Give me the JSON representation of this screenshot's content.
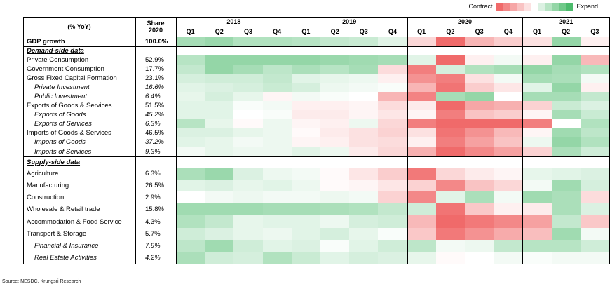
{
  "legend": {
    "low_label": "Contract",
    "high_label": "Expand",
    "swatch_values": [
      -3,
      -2.4,
      -1.8,
      -1.2,
      -0.6,
      0,
      0.6,
      1.2,
      1.8,
      2.4,
      3
    ]
  },
  "header": {
    "metric_label": "(% YoY)",
    "share_label_line1": "Share",
    "share_label_line2": "2020"
  },
  "source": "Source: NESDC, Krungsri Research",
  "colors": {
    "contract": "#f06a6a",
    "neutral": "#ffffff",
    "expand": "#4cbb6c"
  },
  "chart_data": {
    "type": "heatmap",
    "years": [
      {
        "year": "2018",
        "quarters": [
          "Q1",
          "Q2",
          "Q3",
          "Q4"
        ]
      },
      {
        "year": "2019",
        "quarters": [
          "Q1",
          "Q2",
          "Q3",
          "Q4"
        ]
      },
      {
        "year": "2020",
        "quarters": [
          "Q1",
          "Q2",
          "Q3",
          "Q4"
        ]
      },
      {
        "year": "2021",
        "quarters": [
          "Q1",
          "Q2",
          "Q3"
        ]
      }
    ],
    "rows": [
      {
        "label": "GDP growth",
        "share": "100.0%",
        "style": "bold",
        "values": [
          1.5,
          1.7,
          1.3,
          1.3,
          1.2,
          1.0,
          0.9,
          0.5,
          -0.8,
          -3.0,
          -1.5,
          -1.0,
          -0.6,
          1.8,
          -0.3
        ]
      },
      {
        "label": "Demand-side data",
        "share": "",
        "style": "header",
        "values": []
      },
      {
        "label": "Private Consumption",
        "share": "52.9%",
        "style": "normal",
        "values": [
          1.2,
          1.8,
          1.8,
          1.8,
          1.8,
          1.7,
          1.6,
          1.5,
          0.5,
          -3.0,
          -0.3,
          0.2,
          -0.3,
          1.8,
          -1.4
        ]
      },
      {
        "label": "Government Consumption",
        "share": "17.7%",
        "style": "normal",
        "values": [
          1.0,
          1.8,
          1.5,
          1.1,
          1.4,
          1.2,
          1.5,
          -0.7,
          -2.6,
          0.7,
          1.3,
          1.5,
          1.8,
          1.5,
          1.3
        ]
      },
      {
        "label": "Gross Fixed Capital Formation",
        "share": "23.1%",
        "style": "normal",
        "values": [
          0.7,
          0.8,
          0.8,
          1.0,
          0.5,
          0.4,
          0.3,
          -0.3,
          -2.2,
          -2.6,
          -0.6,
          0.2,
          1.5,
          1.4,
          0.2
        ]
      },
      {
        "label": "Private Investment",
        "share": "16.6%",
        "style": "sub",
        "values": [
          0.5,
          0.6,
          0.7,
          0.9,
          0.7,
          0.3,
          0.2,
          0.1,
          -1.5,
          -2.8,
          -1.0,
          -0.5,
          0.5,
          1.8,
          -0.3
        ]
      },
      {
        "label": "Public Investment",
        "share": "6.4%",
        "style": "sub",
        "values": [
          0.4,
          0.7,
          0.4,
          -0.2,
          0.2,
          0.1,
          0.0,
          -1.5,
          -2.5,
          1.5,
          1.8,
          0.0,
          1.5,
          1.5,
          1.0
        ]
      },
      {
        "label": "Exports of Goods & Services",
        "share": "51.5%",
        "style": "normal",
        "values": [
          0.5,
          0.5,
          0.1,
          0.2,
          -0.3,
          -0.3,
          -0.2,
          -0.7,
          -0.4,
          -3.0,
          -1.8,
          -1.6,
          -0.9,
          0.9,
          0.6
        ]
      },
      {
        "label": "Exports of Goods",
        "share": "45.2%",
        "style": "sub",
        "values": [
          0.5,
          0.5,
          0.0,
          0.1,
          -0.4,
          -0.4,
          -0.2,
          -0.5,
          -0.2,
          -2.6,
          -1.2,
          -1.0,
          -0.2,
          1.5,
          0.9
        ]
      },
      {
        "label": "Exports of Services",
        "share": "6.3%",
        "style": "sub",
        "values": [
          1.2,
          0.4,
          -0.1,
          0.3,
          -0.2,
          -0.3,
          0.3,
          -0.8,
          -2.6,
          -3.0,
          -3.0,
          -3.0,
          -2.6,
          0.0,
          1.3
        ]
      },
      {
        "label": "Imports of Goods & Services",
        "share": "46.5%",
        "style": "normal",
        "values": [
          0.6,
          0.6,
          0.4,
          0.3,
          -0.1,
          -0.4,
          -0.6,
          -0.9,
          -0.6,
          -2.8,
          -2.2,
          -1.4,
          -0.2,
          1.6,
          1.1
        ]
      },
      {
        "label": "Imports of Goods",
        "share": "37.2%",
        "style": "sub",
        "values": [
          0.5,
          0.4,
          0.2,
          0.3,
          -0.2,
          -0.3,
          -0.6,
          -0.7,
          -0.3,
          -2.6,
          -1.9,
          -1.2,
          0.3,
          1.8,
          1.3
        ]
      },
      {
        "label": "Imports of Services",
        "share": "9.3%",
        "style": "sub",
        "values": [
          0.2,
          0.4,
          0.3,
          0.3,
          0.5,
          0.3,
          -0.4,
          -0.8,
          -1.6,
          -3.0,
          -2.4,
          -1.9,
          -0.9,
          1.4,
          0.8
        ]
      },
      {
        "label": "Supply-side data",
        "share": "",
        "style": "header",
        "values": []
      },
      {
        "label": "Agriculture",
        "share": "6.3%",
        "style": "normal",
        "values": [
          1.4,
          1.7,
          0.6,
          0.3,
          0.2,
          -0.1,
          -0.5,
          -1.0,
          -2.7,
          -0.8,
          -0.4,
          -0.2,
          0.4,
          0.5,
          0.6
        ]
      },
      {
        "label": "Manufacturing",
        "share": "26.5%",
        "style": "normal",
        "values": [
          0.5,
          0.6,
          0.4,
          0.5,
          0.3,
          -0.1,
          -0.2,
          -0.5,
          -0.9,
          -2.4,
          -1.2,
          -0.8,
          0.2,
          1.6,
          0.7
        ]
      },
      {
        "label": "Construction",
        "share": "2.9%",
        "style": "normal",
        "values": [
          0.0,
          0.2,
          0.3,
          0.2,
          0.2,
          0.3,
          0.2,
          -0.9,
          -2.4,
          0.5,
          1.4,
          0.2,
          1.6,
          1.4,
          -0.7
        ]
      },
      {
        "label": "Wholesale & Retail trade",
        "share": "15.8%",
        "style": "normal",
        "values": [
          1.6,
          1.6,
          1.6,
          1.5,
          1.5,
          1.4,
          1.3,
          1.0,
          0.8,
          -2.8,
          -1.1,
          -0.3,
          -0.4,
          1.4,
          0.6
        ]
      },
      {
        "label": "Accommodation & Food Service",
        "share": "4.3%",
        "style": "normal",
        "values": [
          1.3,
          1.0,
          0.4,
          0.5,
          0.5,
          0.3,
          0.7,
          0.8,
          -1.4,
          -3.0,
          -2.7,
          -2.4,
          -1.9,
          1.0,
          -1.1
        ]
      },
      {
        "label": "Transport & Storage",
        "share": "5.7%",
        "style": "normal",
        "values": [
          0.8,
          0.6,
          0.4,
          0.3,
          0.5,
          0.7,
          0.4,
          0.1,
          -1.1,
          -2.7,
          -2.2,
          -1.7,
          -1.3,
          1.6,
          0.2
        ]
      },
      {
        "label": "Financial & Insurance",
        "share": "7.9%",
        "style": "sub",
        "values": [
          1.1,
          1.6,
          0.8,
          0.5,
          0.6,
          0.1,
          0.5,
          0.8,
          1.1,
          0.2,
          0.3,
          1.0,
          1.2,
          1.2,
          0.8
        ]
      },
      {
        "label": "Real Estate Activities",
        "share": "4.2%",
        "style": "sub",
        "values": [
          1.4,
          0.8,
          0.7,
          1.3,
          0.9,
          0.5,
          0.7,
          0.6,
          0.4,
          -0.1,
          0.0,
          0.2,
          0.1,
          0.2,
          0.2
        ]
      }
    ],
    "color_scale": {
      "min": -3,
      "max": 3
    }
  }
}
